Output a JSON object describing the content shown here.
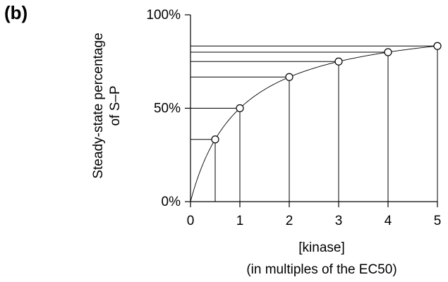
{
  "panel_label": "(b)",
  "chart_data": {
    "type": "line",
    "title": "",
    "ylabel_lines": [
      "Steady-state percentage",
      "of S–P"
    ],
    "xlabel_lines": [
      "[kinase]",
      "(in multiples of the EC50)"
    ],
    "xlim": [
      0,
      5
    ],
    "ylim": [
      0,
      100
    ],
    "x_ticks": [
      0,
      1,
      2,
      3,
      4,
      5
    ],
    "x_tick_labels": [
      "0",
      "1",
      "2",
      "3",
      "4",
      "5"
    ],
    "y_ticks": [
      0,
      50,
      100
    ],
    "y_tick_labels": [
      "0%",
      "50%",
      "100%"
    ],
    "grid": false,
    "points": [
      {
        "x": 0.5,
        "y": 33.3
      },
      {
        "x": 1,
        "y": 50
      },
      {
        "x": 2,
        "y": 66.7
      },
      {
        "x": 3,
        "y": 75
      },
      {
        "x": 4,
        "y": 80
      },
      {
        "x": 5,
        "y": 83.3
      }
    ],
    "curve": "y = 100x / (x + 1)",
    "line_color": "#000000",
    "marker_fill": "#ffffff"
  }
}
